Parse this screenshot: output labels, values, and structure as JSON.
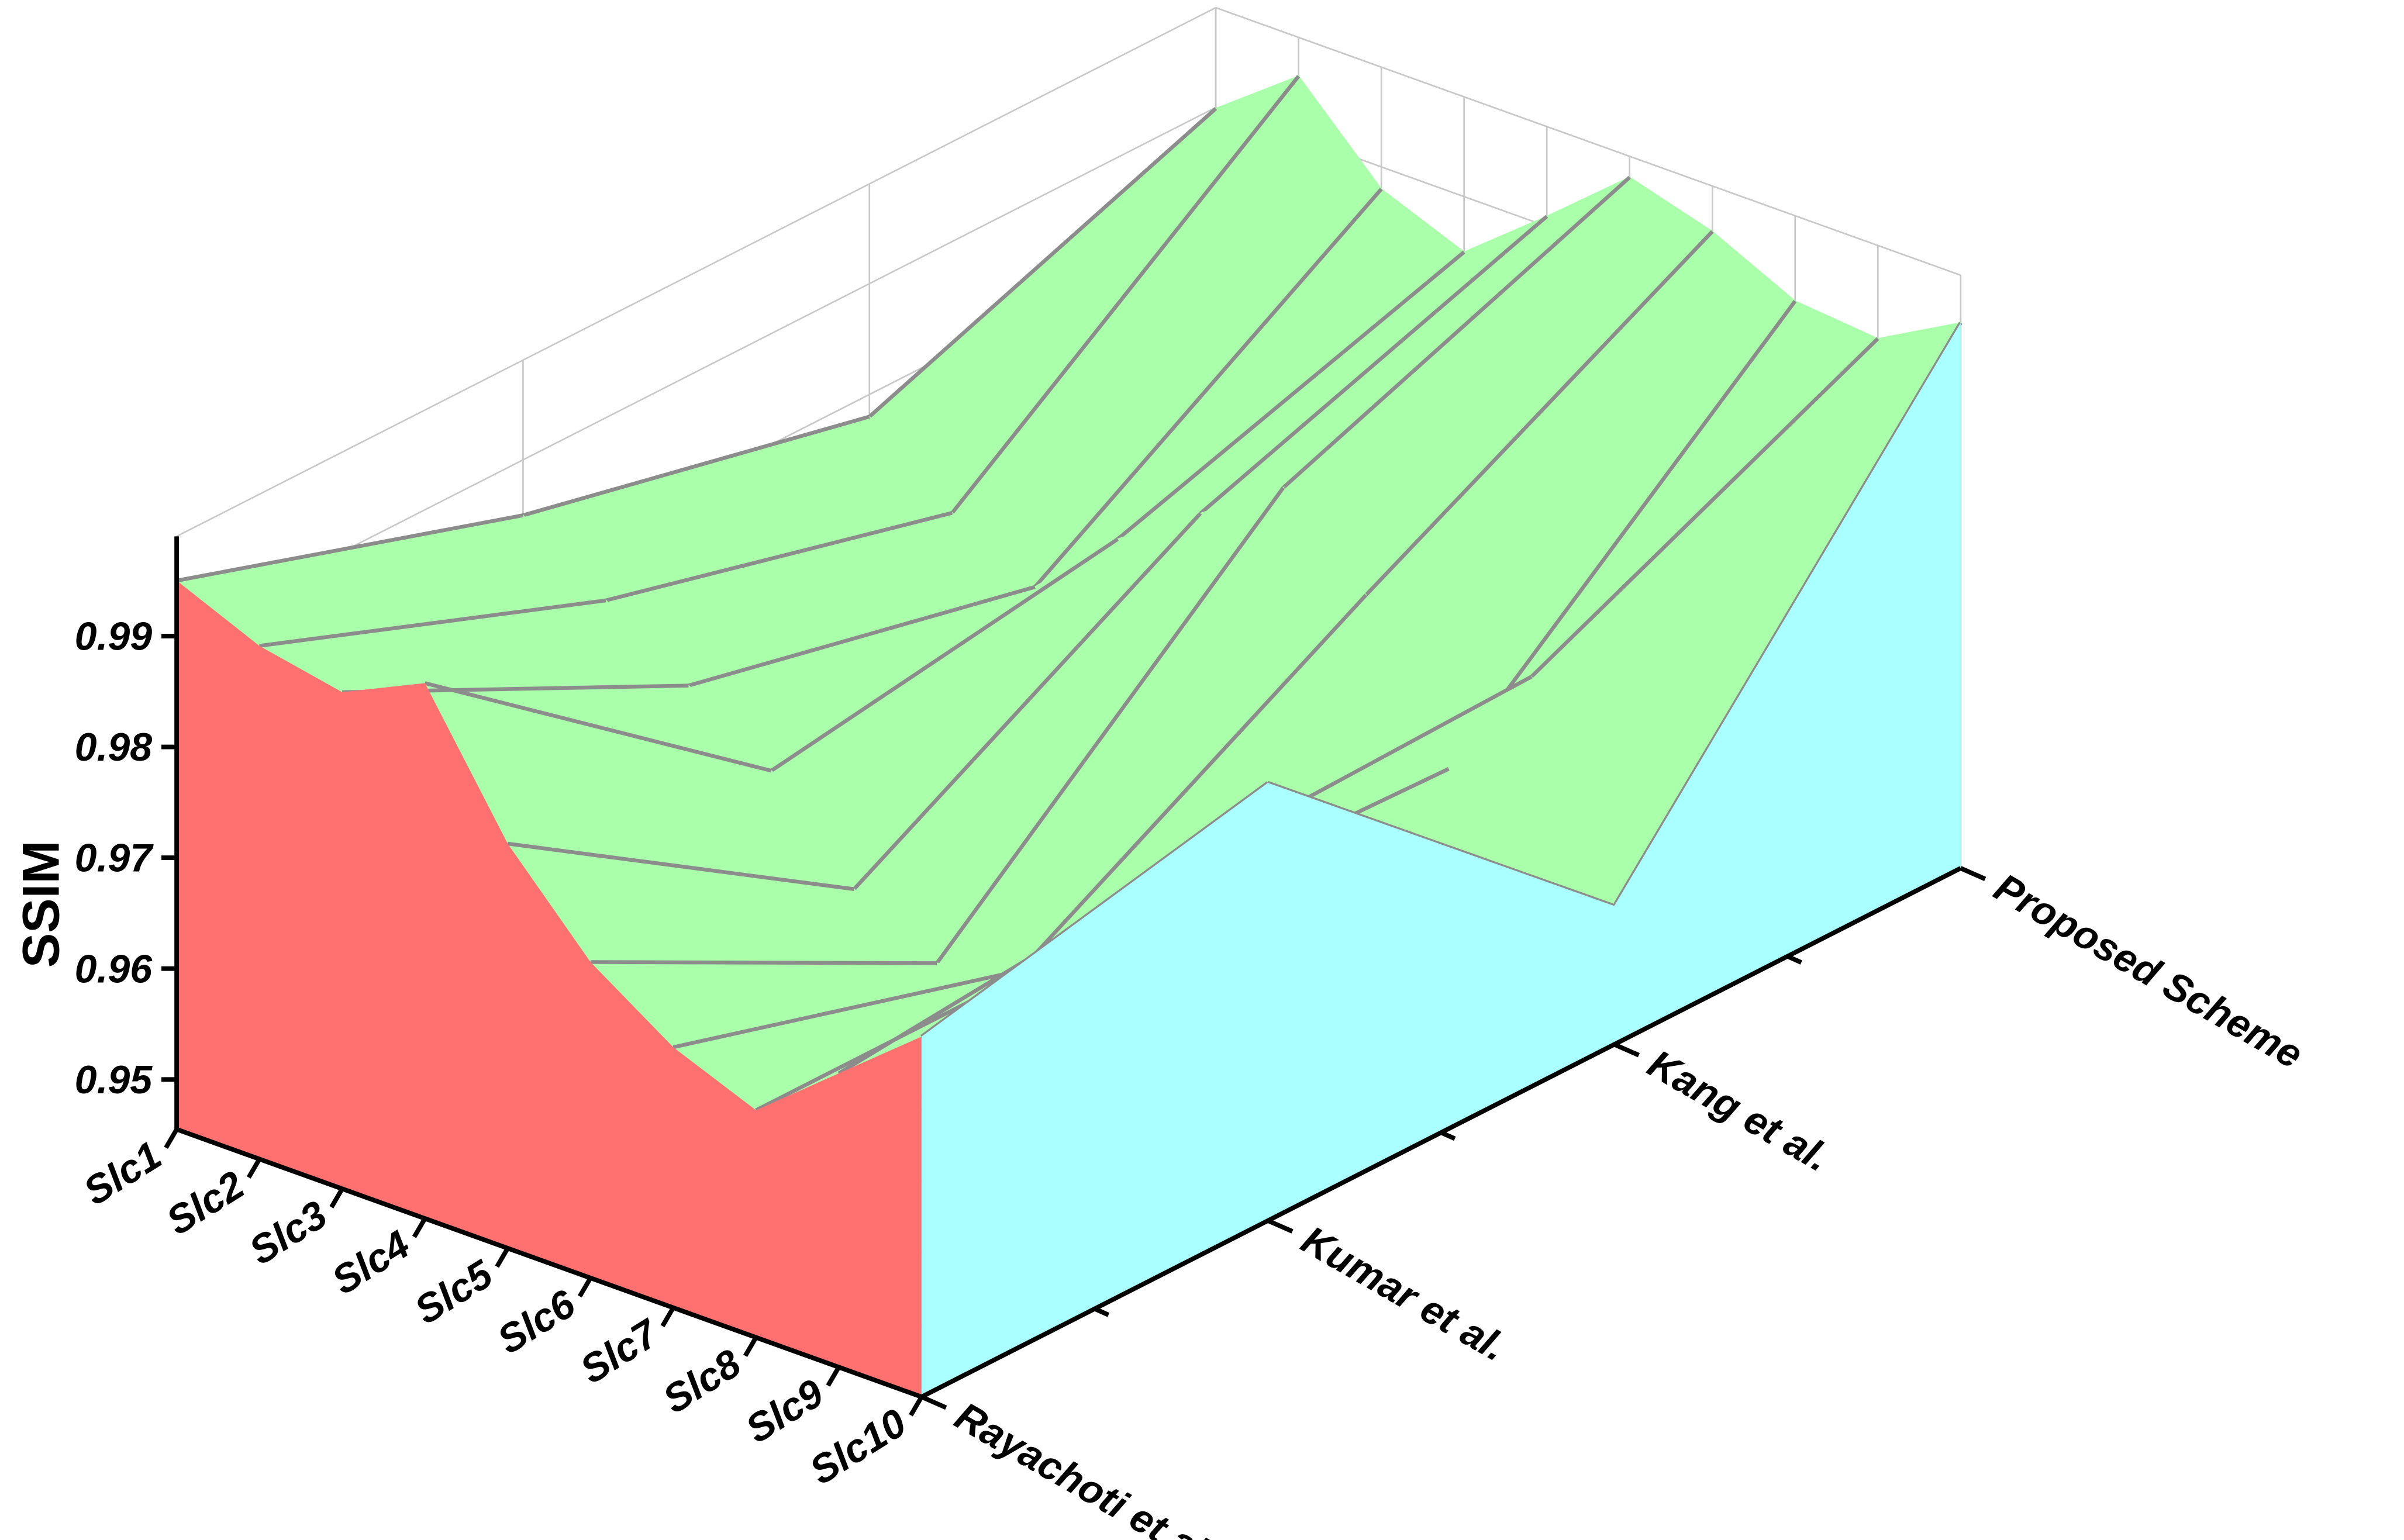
{
  "chart_data": {
    "type": "surface3d",
    "zlabel": "SSIM",
    "categories": [
      "Slc1",
      "Slc2",
      "Slc3",
      "Slc4",
      "Slc5",
      "Slc6",
      "Slc7",
      "Slc8",
      "Slc9",
      "Slc10"
    ],
    "series": [
      {
        "name": "Rayachoti et al.",
        "color": "#ff7070",
        "values": [
          0.995,
          0.9918,
          0.9903,
          0.9938,
          0.982,
          0.974,
          0.969,
          0.966,
          0.972,
          0.978
        ]
      },
      {
        "name": "Kumar et al.",
        "color": "#aaffaa",
        "values": [
          0.985,
          0.98,
          0.975,
          0.97,
          0.962,
          0.958,
          0.96,
          0.966,
          0.975,
          0.985
        ]
      },
      {
        "name": "Kang et al.",
        "color": "#aaffaa",
        "values": [
          0.978,
          0.972,
          0.968,
          0.975,
          0.98,
          0.985,
          0.978,
          0.965,
          0.976,
          0.958
        ]
      },
      {
        "name": "Proposed Scheme",
        "color": "#aaffff",
        "values": [
          0.9899,
          0.9955,
          0.988,
          0.985,
          0.9909,
          0.9971,
          0.9949,
          0.9913,
          0.9906,
          0.9947
        ]
      }
    ],
    "surface_color": "#aaffaa",
    "zlim": [
      0.9455,
      0.999
    ],
    "zticks": [
      0.95,
      0.96,
      0.97,
      0.98,
      0.99
    ],
    "grid": true
  }
}
